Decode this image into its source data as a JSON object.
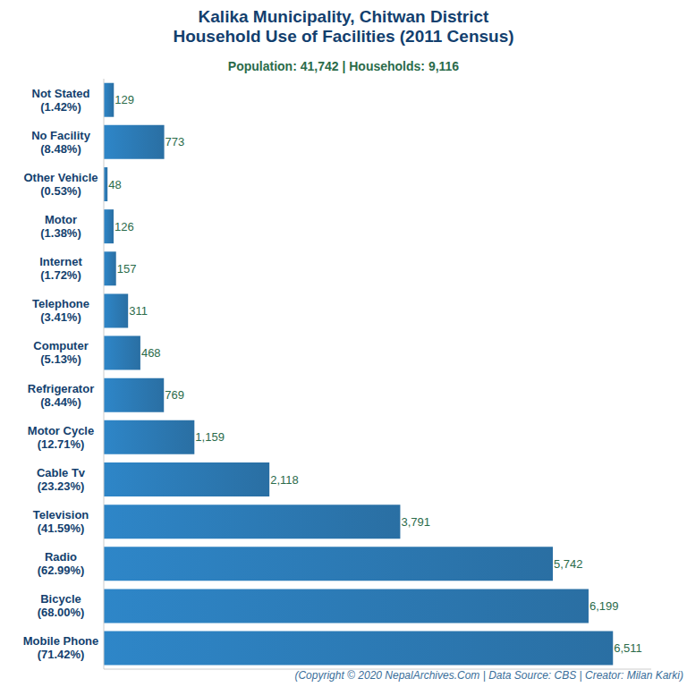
{
  "chart_data": {
    "type": "bar",
    "orientation": "horizontal",
    "title": "Kalika Municipality, Chitwan District\nHousehold Use of Facilities (2011 Census)",
    "subtitle": "Population: 41,742 | Households: 9,116",
    "caption": "(Copyright © 2020 NepalArchives.Com | Data Source: CBS | Creator: Milan Karki)",
    "categories": [
      "Not Stated\n(1.42%)",
      "No Facility\n(8.48%)",
      "Other Vehicle\n(0.53%)",
      "Motor\n(1.38%)",
      "Internet\n(1.72%)",
      "Telephone\n(3.41%)",
      "Computer\n(5.13%)",
      "Refrigerator\n(8.44%)",
      "Motor Cycle\n(12.71%)",
      "Cable Tv\n(23.23%)",
      "Television\n(41.59%)",
      "Radio\n(62.99%)",
      "Bicycle\n(68.00%)",
      "Mobile Phone\n(71.42%)"
    ],
    "values": [
      129,
      773,
      48,
      126,
      157,
      311,
      468,
      769,
      1159,
      2118,
      3791,
      5742,
      6199,
      6511
    ],
    "value_labels": [
      "129",
      "773",
      "48",
      "126",
      "157",
      "311",
      "468",
      "769",
      "1,159",
      "2,118",
      "3,791",
      "5,742",
      "6,199",
      "6,511"
    ],
    "data_labels": true,
    "color": "#2e86c8",
    "xlim": [
      0,
      7000
    ],
    "grid": false,
    "tick_labels": "y"
  }
}
